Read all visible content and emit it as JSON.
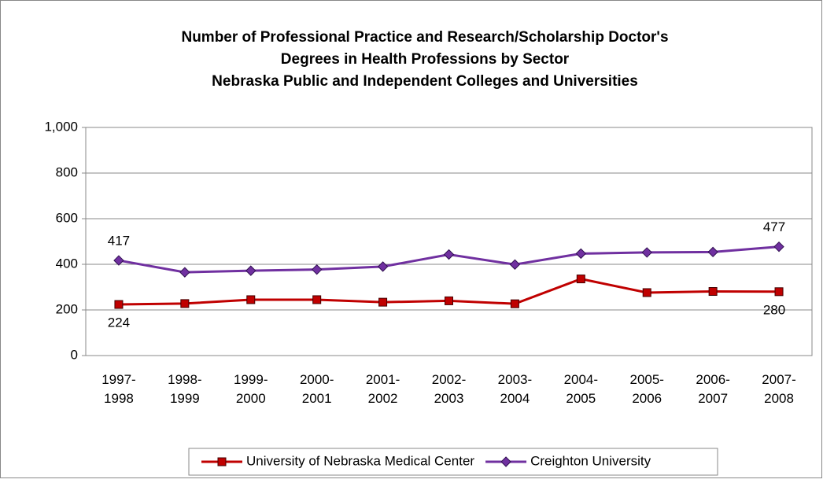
{
  "chart_data": {
    "type": "line",
    "title": [
      "Number of Professional Practice and Research/Scholarship Doctor's",
      "Degrees in Health Professions by Sector",
      "Nebraska Public and Independent Colleges and Universities"
    ],
    "categories": [
      "1997-1998",
      "1998-1999",
      "1999-2000",
      "2000-2001",
      "2001-2002",
      "2002-2003",
      "2003-2004",
      "2004-2005",
      "2005-2006",
      "2006-2007",
      "2007-2008"
    ],
    "series": [
      {
        "name": "University of Nebraska Medical Center",
        "color": "#c00000",
        "marker": "square",
        "values": [
          224,
          228,
          245,
          245,
          234,
          240,
          227,
          336,
          276,
          281,
          280
        ],
        "value_labels": [
          "224",
          null,
          null,
          null,
          null,
          null,
          null,
          null,
          null,
          null,
          "280"
        ]
      },
      {
        "name": "Creighton University",
        "color": "#7030a0",
        "marker": "diamond",
        "values": [
          417,
          365,
          372,
          377,
          390,
          443,
          399,
          447,
          452,
          454,
          477
        ],
        "value_labels": [
          "417",
          null,
          null,
          null,
          null,
          null,
          null,
          null,
          null,
          null,
          "477"
        ]
      }
    ],
    "ylim": [
      0,
      1000
    ],
    "yticks": [
      0,
      200,
      400,
      600,
      800,
      {
        "value": 1000,
        "label": "1,000"
      }
    ],
    "grid": true,
    "legend": "bottom"
  }
}
